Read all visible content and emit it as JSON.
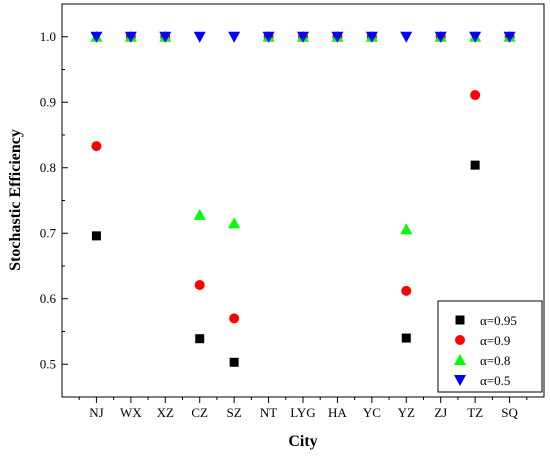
{
  "chart_data": {
    "type": "scatter",
    "xlabel": "City",
    "ylabel": "Stochastic Efficiency",
    "categories": [
      "NJ",
      "WX",
      "XZ",
      "CZ",
      "SZ",
      "NT",
      "LYG",
      "HA",
      "YC",
      "YZ",
      "ZJ",
      "TZ",
      "SQ"
    ],
    "ylim": [
      0.45,
      1.05
    ],
    "yticks": [
      "0.5",
      "0.6",
      "0.7",
      "0.8",
      "0.9",
      "1.0"
    ],
    "grid": false,
    "legend_position": "bottom-right",
    "series": [
      {
        "name": "α=0.95",
        "marker": "square",
        "color": "#000000",
        "values": [
          0.696,
          1.0,
          1.0,
          0.539,
          0.503,
          1.0,
          1.0,
          1.0,
          1.0,
          0.54,
          1.0,
          0.804,
          1.0
        ]
      },
      {
        "name": "α=0.9",
        "marker": "circle",
        "color": "#ff0000",
        "values": [
          0.833,
          1.0,
          1.0,
          0.621,
          0.57,
          1.0,
          1.0,
          1.0,
          1.0,
          0.612,
          1.0,
          0.911,
          1.0
        ]
      },
      {
        "name": "α=0.8",
        "marker": "triangle-up",
        "color": "#00ff00",
        "values": [
          1.0,
          1.0,
          1.0,
          0.728,
          0.715,
          1.0,
          1.0,
          1.0,
          1.0,
          0.706,
          1.0,
          1.0,
          1.0
        ]
      },
      {
        "name": "α=0.5",
        "marker": "triangle-down",
        "color": "#0000ff",
        "values": [
          1.0,
          1.0,
          1.0,
          1.0,
          1.0,
          1.0,
          1.0,
          1.0,
          1.0,
          1.0,
          1.0,
          1.0,
          1.0
        ]
      }
    ]
  }
}
